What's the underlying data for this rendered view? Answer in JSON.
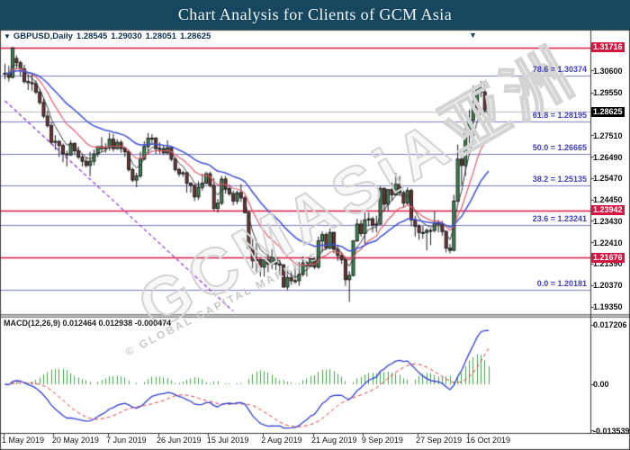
{
  "title": "Chart Analysis for Clients of GCM Asia",
  "legend": {
    "collapse_icon": "▼",
    "symbol": "GBPUSD,Daily",
    "open": "1.28545",
    "high": "1.29030",
    "low": "1.28051",
    "close": "1.28625"
  },
  "macd_legend": "MACD(12,26,9) 0.012464 0.012938 -0.000474",
  "marker_icon": "▼",
  "watermark": {
    "big": "GCMASiA亚洲",
    "small": "© GLOBAL CAPITAL MARKETS"
  },
  "colors": {
    "titlebar": "#17465f",
    "title_text": "#f2f6f8",
    "bull_body": "#3c8f51",
    "bear_body": "#713434",
    "wick": "#1a1a1a",
    "fib_line": "#7a7ac8",
    "fib_text": "#4040b8",
    "resistance_line": "#d81440",
    "current_price_line": "#b9b9b9",
    "ma_fast": "#3a3a3a",
    "ma_mid": "#e05a6a",
    "ma_slow": "#3d50d5",
    "macd_main": "#2f3fd0",
    "macd_signal": "#e03535",
    "macd_hist": "#3fa046",
    "trendline": "#8a2be2",
    "axis_text": "#111111",
    "border": "#444444"
  },
  "chart_data": {
    "type": "candlestick",
    "symbol": "GBPUSD",
    "timeframe": "Daily",
    "current_ohlc": [
      1.28545,
      1.2903,
      1.28051,
      1.28625
    ],
    "current_price": 1.28625,
    "y_axis": {
      "ticks": [
        {
          "label": "1.30600",
          "price": 1.306
        },
        {
          "label": "1.29550",
          "price": 1.2955
        },
        {
          "label": "1.27510",
          "price": 1.2751
        },
        {
          "label": "1.26490",
          "price": 1.2649
        },
        {
          "label": "1.25470",
          "price": 1.2547
        },
        {
          "label": "1.24450",
          "price": 1.2445
        },
        {
          "label": "1.23430",
          "price": 1.2343
        },
        {
          "label": "1.22410",
          "price": 1.2241
        },
        {
          "label": "1.21390",
          "price": 1.2139
        },
        {
          "label": "1.20370",
          "price": 1.2037
        },
        {
          "label": "1.19350",
          "price": 1.1935
        }
      ],
      "special": [
        {
          "label": "1.31716",
          "price": 1.31716,
          "style": "resistance"
        },
        {
          "label": "1.28625",
          "price": 1.28625,
          "style": "current"
        },
        {
          "label": "1.23942",
          "price": 1.23942,
          "style": "resistance"
        },
        {
          "label": "1.21676",
          "price": 1.21676,
          "style": "resistance"
        }
      ]
    },
    "x_axis": {
      "ticks": [
        {
          "label": "1 May 2019",
          "index": 0
        },
        {
          "label": "20 May 2019",
          "index": 13
        },
        {
          "label": "7 Jun 2019",
          "index": 27
        },
        {
          "label": "26 Jun 2019",
          "index": 40
        },
        {
          "label": "15 Jul 2019",
          "index": 53
        },
        {
          "label": "2 Aug 2019",
          "index": 67
        },
        {
          "label": "21 Aug 2019",
          "index": 80
        },
        {
          "label": "9 Sep 2019",
          "index": 93
        },
        {
          "label": "27 Sep 2019",
          "index": 107
        },
        {
          "label": "16 Oct 2019",
          "index": 120
        }
      ]
    },
    "fib_levels": [
      {
        "label": "78.6 = 1.30374",
        "pct": 78.6,
        "price": 1.30374
      },
      {
        "label": "61.8 = 1.28195",
        "pct": 61.8,
        "price": 1.28195
      },
      {
        "label": "50.0 = 1.26665",
        "pct": 50.0,
        "price": 1.26665
      },
      {
        "label": "38.2 = 1.25135",
        "pct": 38.2,
        "price": 1.25135
      },
      {
        "label": "23.6 = 1.23241",
        "pct": 23.6,
        "price": 1.23241
      },
      {
        "label": "0.0 = 1.20181",
        "pct": 0.0,
        "price": 1.20181
      }
    ],
    "resistance_lines": [
      1.31716,
      1.23942,
      1.21676
    ],
    "trendline": {
      "from_index": 0,
      "from_price": 1.2918,
      "to_index": 59,
      "to_price": 1.1914,
      "style": "dashed"
    },
    "moving_averages": [
      {
        "type": "EMA",
        "period": 5,
        "color_key": "ma_fast"
      },
      {
        "type": "EMA",
        "period": 12,
        "color_key": "ma_mid"
      },
      {
        "type": "EMA",
        "period": 26,
        "color_key": "ma_slow"
      }
    ],
    "macd": {
      "label": "MACD(12,26,9)",
      "main": 0.012464,
      "signal": 0.012938,
      "histogram": -0.000474,
      "axis_ticks": [
        {
          "label": "0.017206",
          "value": 0.017206
        },
        {
          "label": "0.00",
          "value": 0
        },
        {
          "label": "-0.013539",
          "value": -0.013539
        }
      ]
    },
    "candles": [
      [
        1.3045,
        1.3095,
        1.302,
        1.305
      ],
      [
        1.305,
        1.3085,
        1.301,
        1.303
      ],
      [
        1.303,
        1.3176,
        1.3025,
        1.317
      ],
      [
        1.312,
        1.3135,
        1.307,
        1.31
      ],
      [
        1.31,
        1.311,
        1.3035,
        1.307
      ],
      [
        1.307,
        1.309,
        1.3,
        1.301
      ],
      [
        1.301,
        1.3045,
        1.297,
        1.3005
      ],
      [
        1.3005,
        1.3045,
        1.2965,
        1.3
      ],
      [
        1.3,
        1.3015,
        1.295,
        1.296
      ],
      [
        1.296,
        1.2975,
        1.29,
        1.291
      ],
      [
        1.291,
        1.293,
        1.2835,
        1.2845
      ],
      [
        1.2845,
        1.287,
        1.279,
        1.28
      ],
      [
        1.28,
        1.2815,
        1.271,
        1.272
      ],
      [
        1.272,
        1.2755,
        1.2685,
        1.2725
      ],
      [
        1.2725,
        1.273,
        1.265,
        1.2705
      ],
      [
        1.2705,
        1.2715,
        1.2625,
        1.2665
      ],
      [
        1.2665,
        1.268,
        1.2605,
        1.266
      ],
      [
        1.266,
        1.273,
        1.2655,
        1.2715
      ],
      [
        1.2715,
        1.272,
        1.266,
        1.268
      ],
      [
        1.268,
        1.27,
        1.264,
        1.265
      ],
      [
        1.265,
        1.2665,
        1.2605,
        1.263
      ],
      [
        1.263,
        1.265,
        1.26,
        1.261
      ],
      [
        1.261,
        1.2675,
        1.2558,
        1.263
      ],
      [
        1.263,
        1.2685,
        1.261,
        1.2665
      ],
      [
        1.2665,
        1.27,
        1.265,
        1.27
      ],
      [
        1.27,
        1.2745,
        1.2675,
        1.269
      ],
      [
        1.269,
        1.2715,
        1.267,
        1.2695
      ],
      [
        1.2695,
        1.2765,
        1.268,
        1.2735
      ],
      [
        1.2735,
        1.276,
        1.2675,
        1.269
      ],
      [
        1.269,
        1.2735,
        1.2685,
        1.272
      ],
      [
        1.272,
        1.273,
        1.267,
        1.269
      ],
      [
        1.269,
        1.27,
        1.265,
        1.2675
      ],
      [
        1.2675,
        1.2685,
        1.258,
        1.259
      ],
      [
        1.259,
        1.26,
        1.253,
        1.254
      ],
      [
        1.254,
        1.2575,
        1.2505,
        1.256
      ],
      [
        1.256,
        1.2675,
        1.255,
        1.264
      ],
      [
        1.264,
        1.2725,
        1.2635,
        1.27
      ],
      [
        1.27,
        1.2765,
        1.2665,
        1.274
      ],
      [
        1.274,
        1.276,
        1.2715,
        1.274
      ],
      [
        1.274,
        1.2745,
        1.2665,
        1.269
      ],
      [
        1.269,
        1.272,
        1.2665,
        1.269
      ],
      [
        1.269,
        1.2705,
        1.266,
        1.267
      ],
      [
        1.267,
        1.273,
        1.266,
        1.2695
      ],
      [
        1.2695,
        1.27,
        1.263,
        1.264
      ],
      [
        1.264,
        1.265,
        1.258,
        1.259
      ],
      [
        1.259,
        1.26,
        1.2555,
        1.257
      ],
      [
        1.257,
        1.2585,
        1.2555,
        1.2575
      ],
      [
        1.2575,
        1.258,
        1.248,
        1.2525
      ],
      [
        1.2525,
        1.253,
        1.248,
        1.2515
      ],
      [
        1.2515,
        1.252,
        1.244,
        1.246
      ],
      [
        1.246,
        1.2535,
        1.2445,
        1.2505
      ],
      [
        1.2505,
        1.257,
        1.249,
        1.2525
      ],
      [
        1.2525,
        1.258,
        1.252,
        1.257
      ],
      [
        1.257,
        1.258,
        1.2505,
        1.2515
      ],
      [
        1.2515,
        1.255,
        1.2395,
        1.2405
      ],
      [
        1.2405,
        1.245,
        1.2385,
        1.243
      ],
      [
        1.243,
        1.256,
        1.242,
        1.2545
      ],
      [
        1.2545,
        1.256,
        1.2475,
        1.25
      ],
      [
        1.25,
        1.252,
        1.2465,
        1.2475
      ],
      [
        1.2475,
        1.249,
        1.242,
        1.244
      ],
      [
        1.244,
        1.249,
        1.2425,
        1.248
      ],
      [
        1.248,
        1.252,
        1.2435,
        1.2455
      ],
      [
        1.2455,
        1.2465,
        1.238,
        1.2385
      ],
      [
        1.2385,
        1.239,
        1.221,
        1.2215
      ],
      [
        1.2215,
        1.226,
        1.212,
        1.2155
      ],
      [
        1.2155,
        1.225,
        1.21,
        1.216
      ],
      [
        1.216,
        1.2165,
        1.208,
        1.2125
      ],
      [
        1.2125,
        1.2175,
        1.208,
        1.216
      ],
      [
        1.216,
        1.2205,
        1.21,
        1.214
      ],
      [
        1.214,
        1.221,
        1.2115,
        1.217
      ],
      [
        1.217,
        1.218,
        1.211,
        1.214
      ],
      [
        1.214,
        1.216,
        1.209,
        1.2135
      ],
      [
        1.2135,
        1.214,
        1.2025,
        1.203
      ],
      [
        1.203,
        1.2105,
        1.2015,
        1.2075
      ],
      [
        1.2075,
        1.2105,
        1.204,
        1.206
      ],
      [
        1.206,
        1.2125,
        1.2045,
        1.206
      ],
      [
        1.206,
        1.215,
        1.2035,
        1.209
      ],
      [
        1.209,
        1.2175,
        1.208,
        1.2145
      ],
      [
        1.2145,
        1.2155,
        1.208,
        1.213
      ],
      [
        1.213,
        1.218,
        1.2125,
        1.2165
      ],
      [
        1.2165,
        1.2175,
        1.2115,
        1.2125
      ],
      [
        1.2125,
        1.227,
        1.2115,
        1.225
      ],
      [
        1.225,
        1.2295,
        1.2195,
        1.228
      ],
      [
        1.228,
        1.229,
        1.221,
        1.2215
      ],
      [
        1.2215,
        1.231,
        1.221,
        1.229
      ],
      [
        1.229,
        1.2295,
        1.219,
        1.221
      ],
      [
        1.221,
        1.223,
        1.2155,
        1.218
      ],
      [
        1.218,
        1.2195,
        1.214,
        1.216
      ],
      [
        1.216,
        1.217,
        1.2035,
        1.2065
      ],
      [
        1.2065,
        1.2105,
        1.1959,
        1.2085
      ],
      [
        1.2085,
        1.225,
        1.208,
        1.225
      ],
      [
        1.225,
        1.2355,
        1.2245,
        1.233
      ],
      [
        1.233,
        1.235,
        1.227,
        1.2285
      ],
      [
        1.2285,
        1.2385,
        1.2235,
        1.235
      ],
      [
        1.235,
        1.2385,
        1.232,
        1.2355
      ],
      [
        1.2355,
        1.2365,
        1.229,
        1.2325
      ],
      [
        1.2325,
        1.237,
        1.229,
        1.233
      ],
      [
        1.233,
        1.251,
        1.2325,
        1.25
      ],
      [
        1.25,
        1.2505,
        1.239,
        1.2425
      ],
      [
        1.2425,
        1.249,
        1.2395,
        1.2495
      ],
      [
        1.2495,
        1.2528,
        1.244,
        1.247
      ],
      [
        1.247,
        1.2575,
        1.2465,
        1.252
      ],
      [
        1.252,
        1.256,
        1.2465,
        1.248
      ],
      [
        1.248,
        1.249,
        1.241,
        1.243
      ],
      [
        1.243,
        1.2505,
        1.242,
        1.249
      ],
      [
        1.249,
        1.25,
        1.232,
        1.235
      ],
      [
        1.235,
        1.237,
        1.227,
        1.232
      ],
      [
        1.232,
        1.233,
        1.2255,
        1.229
      ],
      [
        1.229,
        1.232,
        1.226,
        1.229
      ],
      [
        1.229,
        1.231,
        1.2205,
        1.23
      ],
      [
        1.23,
        1.231,
        1.223,
        1.23
      ],
      [
        1.23,
        1.239,
        1.229,
        1.2335
      ],
      [
        1.2335,
        1.235,
        1.229,
        1.233
      ],
      [
        1.233,
        1.2345,
        1.2275,
        1.2295
      ],
      [
        1.2295,
        1.23,
        1.2195,
        1.2215
      ],
      [
        1.2215,
        1.2235,
        1.219,
        1.2205
      ],
      [
        1.2205,
        1.247,
        1.22,
        1.244
      ],
      [
        1.244,
        1.271,
        1.2435,
        1.264
      ],
      [
        1.264,
        1.2655,
        1.2515,
        1.261
      ],
      [
        1.261,
        1.279,
        1.256,
        1.278
      ],
      [
        1.278,
        1.2875,
        1.2715,
        1.2825
      ],
      [
        1.2825,
        1.299,
        1.2765,
        1.2885
      ],
      [
        1.2885,
        1.2985,
        1.284,
        1.298
      ],
      [
        1.298,
        1.3012,
        1.2935,
        1.296
      ],
      [
        1.296,
        1.3,
        1.286,
        1.2875
      ],
      [
        1.28545,
        1.2903,
        1.28051,
        1.28625
      ]
    ]
  }
}
